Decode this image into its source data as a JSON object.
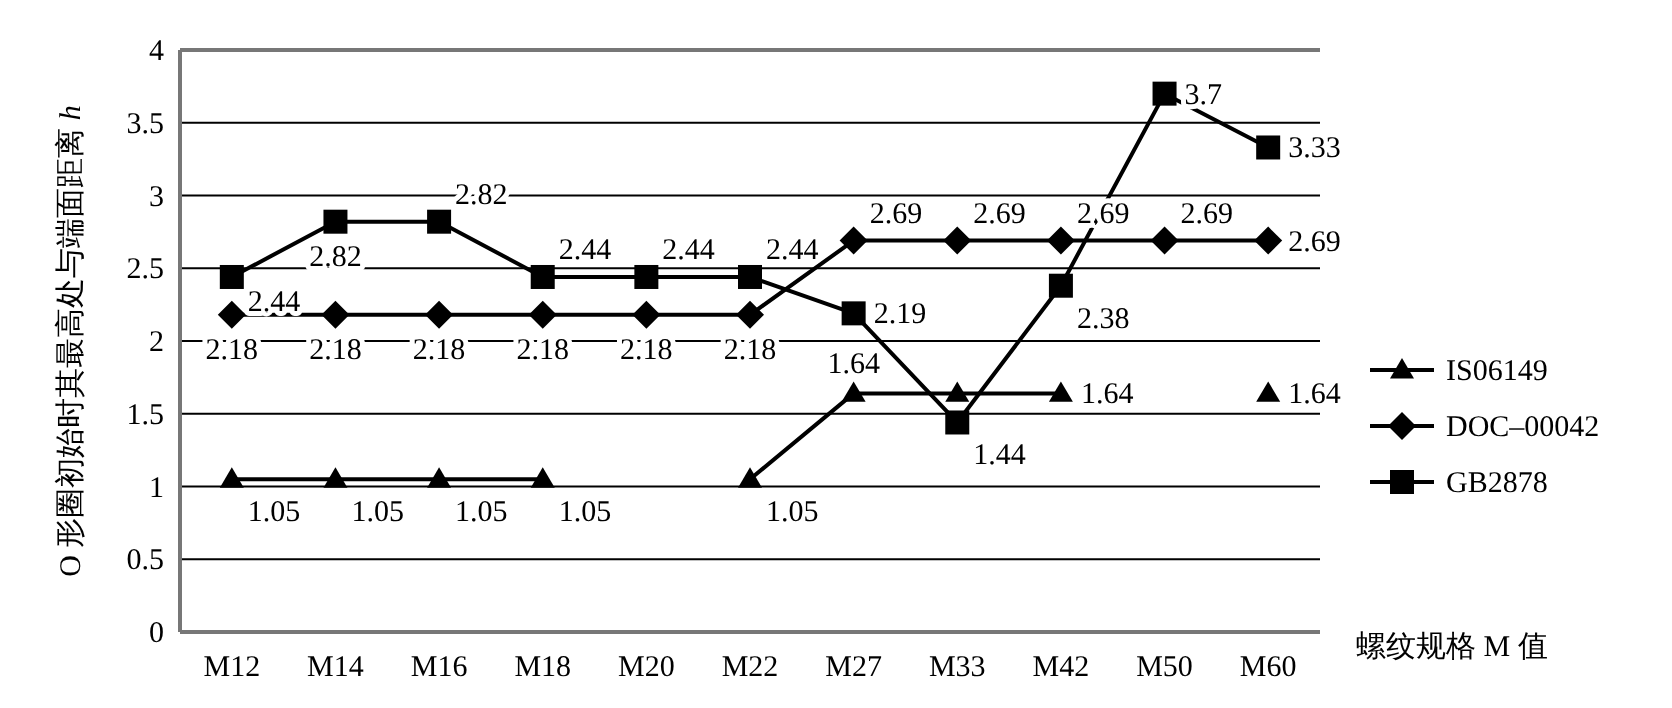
{
  "chart_data": {
    "type": "line",
    "xlabel": "螺纹规格 M 值",
    "ylabel": "O 形圈初始时其最高处与端面距离 *h*",
    "categories": [
      "M12",
      "M14",
      "M16",
      "M18",
      "M20",
      "M22",
      "M27",
      "M33",
      "M42",
      "M50",
      "M60"
    ],
    "ylim": [
      0,
      4
    ],
    "yticks": [
      0,
      0.5,
      1,
      1.5,
      2,
      2.5,
      3,
      3.5,
      4
    ],
    "grid": "y",
    "legend": "right",
    "series": [
      {
        "name": "IS06149",
        "color": "#000000",
        "marker": "triangle",
        "values": [
          1.05,
          1.05,
          1.05,
          1.05,
          null,
          1.05,
          1.64,
          1.64,
          1.64,
          null,
          1.64
        ],
        "value_labels": [
          "1.05",
          "1.05",
          "1.05",
          "1.05",
          null,
          "1.05",
          "1.64",
          null,
          "1.64",
          null,
          "1.64"
        ]
      },
      {
        "name": "DOC–00042",
        "color": "#000000",
        "marker": "diamond",
        "values": [
          2.18,
          2.18,
          2.18,
          2.18,
          2.18,
          2.18,
          2.69,
          2.69,
          2.69,
          2.69,
          2.69
        ],
        "value_labels": [
          "2.18",
          "2.18",
          "2.18",
          "2.18",
          "2.18",
          "2.18",
          "2.69",
          "2.69",
          "2.69",
          "2.69",
          "2.69"
        ]
      },
      {
        "name": "GB2878",
        "color": "#000000",
        "marker": "square",
        "values": [
          2.44,
          2.82,
          2.82,
          2.44,
          2.44,
          2.44,
          2.19,
          1.44,
          2.38,
          3.7,
          3.33
        ],
        "value_labels": [
          "2.44",
          "2.82",
          "2.82",
          "2.44",
          "2.44",
          "2.44",
          "2.19",
          "1.44",
          "2.38",
          "3.7",
          "3.33"
        ]
      }
    ]
  }
}
